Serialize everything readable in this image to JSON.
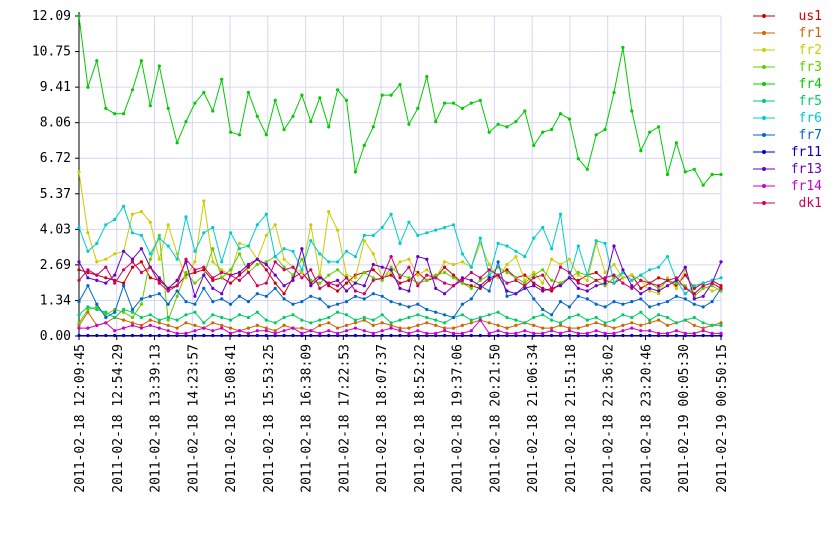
{
  "chart_data": {
    "type": "line",
    "title": "",
    "xlabel": "",
    "ylabel": "",
    "ylim": [
      0,
      12.09
    ],
    "yticks": [
      "0.00",
      "1.34",
      "2.69",
      "4.03",
      "5.37",
      "6.72",
      "8.06",
      "9.41",
      "10.75",
      "12.09"
    ],
    "xticks": [
      "2011-02-18 12:09:45",
      "2011-02-18 12:54:29",
      "2011-02-18 13:39:13",
      "2011-02-18 14:23:57",
      "2011-02-18 15:08:41",
      "2011-02-18 15:53:25",
      "2011-02-18 16:38:09",
      "2011-02-18 17:22:53",
      "2011-02-18 18:07:37",
      "2011-02-18 18:52:22",
      "2011-02-18 19:37:06",
      "2011-02-18 20:21:50",
      "2011-02-18 21:06:34",
      "2011-02-18 21:51:18",
      "2011-02-18 22:36:02",
      "2011-02-18 23:20:46",
      "2011-02-19 00:05:30",
      "2011-02-19 00:50:15"
    ],
    "grid": true,
    "legend_position": "right",
    "series": [
      {
        "name": "us1",
        "color": "#cc0000",
        "values": [
          2.5,
          2.4,
          2.3,
          2.2,
          2.1,
          2.0,
          2.6,
          2.8,
          2.2,
          2.1,
          1.8,
          1.9,
          2.3,
          2.4,
          2.5,
          2.1,
          2.2,
          2.0,
          2.3,
          2.6,
          2.9,
          2.5,
          2.0,
          1.6,
          2.2,
          2.4,
          2.0,
          2.3,
          1.9,
          1.7,
          2.0,
          2.3,
          2.4,
          2.5,
          2.2,
          2.3,
          2.0,
          2.1,
          2.4,
          2.1,
          2.2,
          2.6,
          2.3,
          2.0,
          1.9,
          1.8,
          2.1,
          2.3,
          2.5,
          2.2,
          2.3,
          2.0,
          1.8,
          1.7,
          2.0,
          2.2,
          2.1,
          2.3,
          2.4,
          2.1,
          2.0,
          2.2,
          2.3,
          1.8,
          2.0,
          2.2,
          2.1,
          1.9,
          2.3,
          1.8,
          2.0,
          2.1,
          1.9
        ]
      },
      {
        "name": "fr1",
        "color": "#cc6600",
        "values": [
          0.4,
          0.9,
          0.4,
          0.5,
          0.7,
          0.6,
          0.5,
          0.4,
          0.6,
          0.5,
          0.4,
          0.3,
          0.5,
          0.4,
          0.3,
          0.5,
          0.4,
          0.3,
          0.2,
          0.3,
          0.4,
          0.3,
          0.2,
          0.4,
          0.3,
          0.3,
          0.2,
          0.4,
          0.5,
          0.3,
          0.4,
          0.5,
          0.6,
          0.4,
          0.5,
          0.4,
          0.3,
          0.3,
          0.4,
          0.5,
          0.4,
          0.3,
          0.3,
          0.4,
          0.5,
          0.6,
          0.5,
          0.4,
          0.3,
          0.4,
          0.5,
          0.4,
          0.3,
          0.3,
          0.4,
          0.3,
          0.3,
          0.4,
          0.5,
          0.4,
          0.3,
          0.4,
          0.5,
          0.4,
          0.5,
          0.6,
          0.4,
          0.5,
          0.6,
          0.4,
          0.3,
          0.4,
          0.5
        ]
      },
      {
        "name": "fr2",
        "color": "#cccc00",
        "values": [
          6.2,
          3.9,
          2.8,
          2.9,
          3.1,
          3.2,
          4.6,
          4.7,
          4.3,
          2.9,
          4.2,
          3.1,
          2.2,
          2.8,
          5.1,
          2.8,
          2.5,
          2.3,
          3.5,
          3.4,
          2.9,
          3.8,
          4.2,
          2.9,
          2.6,
          2.4,
          4.2,
          2.3,
          4.7,
          4.0,
          2.3,
          2.2,
          3.6,
          3.1,
          2.2,
          2.4,
          2.8,
          2.9,
          2.3,
          2.5,
          2.2,
          2.8,
          2.7,
          2.8,
          2.6,
          3.5,
          2.7,
          2.2,
          2.7,
          3.0,
          2.1,
          2.4,
          2.0,
          2.9,
          2.7,
          2.9,
          2.3,
          2.1,
          3.5,
          2.4,
          2.7,
          2.2,
          2.3,
          2.1,
          1.7,
          1.6,
          2.2,
          1.8,
          2.5,
          1.6,
          1.9,
          1.7,
          1.8
        ]
      },
      {
        "name": "fr3",
        "color": "#66cc00",
        "values": [
          0.5,
          1.0,
          1.1,
          0.8,
          1.0,
          0.9,
          0.7,
          1.2,
          2.9,
          3.8,
          0.6,
          1.5,
          2.4,
          2.0,
          2.3,
          3.3,
          2.2,
          2.5,
          3.1,
          2.4,
          2.7,
          2.8,
          3.0,
          2.6,
          2.3,
          2.9,
          2.1,
          2.0,
          2.3,
          2.5,
          2.2,
          2.0,
          2.4,
          2.2,
          2.1,
          2.6,
          2.3,
          2.2,
          2.0,
          2.1,
          2.3,
          2.4,
          2.2,
          2.0,
          1.8,
          2.1,
          2.3,
          2.6,
          2.4,
          2.2,
          2.0,
          2.3,
          2.5,
          2.1,
          2.0,
          2.2,
          2.4,
          2.3,
          2.1,
          1.9,
          2.2,
          2.4,
          2.1,
          2.3,
          2.0,
          1.8,
          2.1,
          2.0,
          1.9,
          1.5,
          1.8,
          1.9,
          1.7
        ]
      },
      {
        "name": "fr4",
        "color": "#00cc00",
        "values": [
          12.09,
          9.4,
          10.4,
          8.6,
          8.4,
          8.4,
          9.3,
          10.4,
          8.7,
          10.2,
          8.6,
          7.3,
          8.1,
          8.8,
          9.2,
          8.5,
          9.7,
          7.7,
          7.6,
          9.2,
          8.3,
          7.6,
          8.9,
          7.8,
          8.3,
          9.1,
          8.1,
          9.0,
          7.9,
          9.3,
          8.9,
          6.2,
          7.2,
          7.9,
          9.1,
          9.1,
          9.5,
          8.0,
          8.6,
          9.8,
          8.1,
          8.8,
          8.8,
          8.6,
          8.8,
          8.9,
          7.7,
          8.0,
          7.9,
          8.1,
          8.5,
          7.2,
          7.7,
          7.8,
          8.4,
          8.2,
          6.7,
          6.3,
          7.6,
          7.8,
          9.2,
          10.9,
          8.5,
          7.0,
          7.7,
          7.9,
          6.1,
          7.3,
          6.2,
          6.3,
          5.7,
          6.1,
          6.1
        ]
      },
      {
        "name": "fr5",
        "color": "#00cc66",
        "values": [
          0.8,
          1.1,
          1.0,
          0.9,
          0.7,
          1.0,
          0.9,
          0.7,
          0.8,
          0.6,
          0.7,
          0.6,
          0.8,
          0.9,
          0.5,
          0.8,
          0.7,
          0.6,
          0.8,
          0.7,
          0.9,
          0.6,
          0.5,
          0.7,
          0.8,
          0.6,
          0.5,
          0.6,
          0.7,
          0.9,
          0.8,
          0.6,
          0.7,
          0.6,
          0.8,
          0.5,
          0.6,
          0.7,
          0.8,
          0.7,
          0.6,
          0.5,
          0.7,
          0.8,
          0.6,
          0.7,
          0.8,
          0.9,
          0.7,
          0.6,
          0.5,
          0.7,
          0.8,
          0.6,
          0.5,
          0.7,
          0.8,
          0.6,
          0.7,
          0.5,
          0.6,
          0.8,
          0.7,
          0.9,
          0.6,
          0.8,
          0.7,
          0.5,
          0.6,
          0.7,
          0.5,
          0.4,
          0.4
        ]
      },
      {
        "name": "fr6",
        "color": "#00cccc",
        "values": [
          4.1,
          3.2,
          3.5,
          4.2,
          4.4,
          4.9,
          3.9,
          3.8,
          3.1,
          3.7,
          3.4,
          2.9,
          4.5,
          3.2,
          3.9,
          4.1,
          2.8,
          3.9,
          3.3,
          3.4,
          4.2,
          4.6,
          3.0,
          3.3,
          3.2,
          2.5,
          3.6,
          3.1,
          2.8,
          2.8,
          3.2,
          3.0,
          3.8,
          3.8,
          4.1,
          4.6,
          3.5,
          4.3,
          3.8,
          3.9,
          4.0,
          4.1,
          4.2,
          3.1,
          2.6,
          3.7,
          2.3,
          3.5,
          3.4,
          3.2,
          3.0,
          3.7,
          4.1,
          3.3,
          4.6,
          2.2,
          3.4,
          2.3,
          3.6,
          3.5,
          2.0,
          2.4,
          2.1,
          2.3,
          2.5,
          2.6,
          3.0,
          2.1,
          1.6,
          1.9,
          2.0,
          2.1,
          2.2
        ]
      },
      {
        "name": "fr7",
        "color": "#0066cc",
        "values": [
          1.3,
          1.9,
          1.2,
          0.7,
          0.9,
          1.9,
          1.0,
          1.4,
          1.5,
          1.6,
          1.2,
          1.7,
          1.3,
          1.2,
          1.8,
          1.3,
          1.4,
          1.2,
          1.5,
          1.3,
          1.6,
          1.5,
          1.8,
          1.4,
          1.2,
          1.3,
          1.5,
          1.4,
          1.1,
          1.2,
          1.3,
          1.5,
          1.4,
          1.6,
          1.5,
          1.3,
          1.2,
          1.1,
          1.2,
          1.0,
          0.9,
          0.8,
          0.7,
          1.2,
          1.4,
          1.9,
          1.7,
          2.8,
          1.5,
          1.6,
          1.9,
          1.4,
          1.0,
          0.8,
          1.3,
          1.1,
          1.5,
          1.4,
          1.2,
          1.1,
          1.3,
          1.2,
          1.3,
          1.4,
          1.1,
          1.2,
          1.3,
          1.5,
          1.4,
          1.2,
          1.1,
          1.3,
          1.8
        ]
      },
      {
        "name": "fr11",
        "color": "#0000cc",
        "values": [
          0.02,
          0.02,
          0.02,
          0.02,
          0.02,
          0.02,
          0.02,
          0.02,
          0.02,
          0.02,
          0.02,
          0.02,
          0.02,
          0.02,
          0.02,
          0.02,
          0.02,
          0.02,
          0.02,
          0.02,
          0.02,
          0.02,
          0.02,
          0.02,
          0.02,
          0.02,
          0.02,
          0.02,
          0.02,
          0.02,
          0.02,
          0.02,
          0.02,
          0.02,
          0.02,
          0.02,
          0.02,
          0.02,
          0.02,
          0.02,
          0.02,
          0.02,
          0.02,
          0.02,
          0.02,
          0.02,
          0.02,
          0.02,
          0.02,
          0.02,
          0.02,
          0.02,
          0.02,
          0.02,
          0.02,
          0.02,
          0.02,
          0.02,
          0.02,
          0.02,
          0.02,
          0.02,
          0.02,
          0.02,
          0.02,
          0.02,
          0.02,
          0.02,
          0.02,
          0.02,
          0.02,
          0.02,
          0.02
        ]
      },
      {
        "name": "fr13",
        "color": "#6600cc",
        "values": [
          2.8,
          2.2,
          2.1,
          2.0,
          2.3,
          3.2,
          2.9,
          3.3,
          2.6,
          2.2,
          1.8,
          2.1,
          2.8,
          1.5,
          2.3,
          1.8,
          1.6,
          2.3,
          2.4,
          2.7,
          2.9,
          2.7,
          2.3,
          1.9,
          2.1,
          3.3,
          1.9,
          2.2,
          2.0,
          2.1,
          1.7,
          2.0,
          1.9,
          2.7,
          2.6,
          2.5,
          1.8,
          1.7,
          3.0,
          2.9,
          1.8,
          1.6,
          1.9,
          2.2,
          2.1,
          1.9,
          2.2,
          2.3,
          1.7,
          1.6,
          1.8,
          1.9,
          1.7,
          1.8,
          1.9,
          2.2,
          1.8,
          1.7,
          1.9,
          2.0,
          3.4,
          2.5,
          1.9,
          1.6,
          1.8,
          1.7,
          1.9,
          2.1,
          2.6,
          1.4,
          1.5,
          2.0,
          2.8
        ]
      },
      {
        "name": "fr14",
        "color": "#cc00cc",
        "values": [
          0.3,
          0.3,
          0.4,
          0.5,
          0.2,
          0.3,
          0.4,
          0.3,
          0.4,
          0.3,
          0.2,
          0.1,
          0.1,
          0.2,
          0.3,
          0.2,
          0.3,
          0.1,
          0.2,
          0.1,
          0.2,
          0.2,
          0.1,
          0.2,
          0.3,
          0.1,
          0.2,
          0.1,
          0.2,
          0.1,
          0.2,
          0.3,
          0.2,
          0.1,
          0.2,
          0.3,
          0.2,
          0.1,
          0.2,
          0.1,
          0.1,
          0.2,
          0.1,
          0.1,
          0.2,
          0.6,
          0.1,
          0.2,
          0.1,
          0.1,
          0.2,
          0.1,
          0.1,
          0.2,
          0.1,
          0.2,
          0.1,
          0.1,
          0.2,
          0.1,
          0.1,
          0.2,
          0.3,
          0.2,
          0.2,
          0.1,
          0.1,
          0.2,
          0.1,
          0.1,
          0.2,
          0.1,
          0.1
        ]
      },
      {
        "name": "dk1",
        "color": "#cc0066",
        "values": [
          2.1,
          2.5,
          2.3,
          2.6,
          2.0,
          2.5,
          2.8,
          2.4,
          2.6,
          2.0,
          1.7,
          1.9,
          2.9,
          2.5,
          2.6,
          2.2,
          2.4,
          2.3,
          2.1,
          2.4,
          1.9,
          2.0,
          2.8,
          2.5,
          2.6,
          2.2,
          2.5,
          1.8,
          2.0,
          1.9,
          2.2,
          1.7,
          1.6,
          2.1,
          2.2,
          3.0,
          2.2,
          2.6,
          1.9,
          2.3,
          2.2,
          2.0,
          1.9,
          2.1,
          2.4,
          2.2,
          2.5,
          2.3,
          2.0,
          2.1,
          1.9,
          2.2,
          2.3,
          1.8,
          2.6,
          2.4,
          2.0,
          1.9,
          2.1,
          2.2,
          2.3,
          2.0,
          1.8,
          2.1,
          2.0,
          1.9,
          2.1,
          2.2,
          1.8,
          1.6,
          1.9,
          2.0,
          1.8
        ]
      }
    ]
  }
}
